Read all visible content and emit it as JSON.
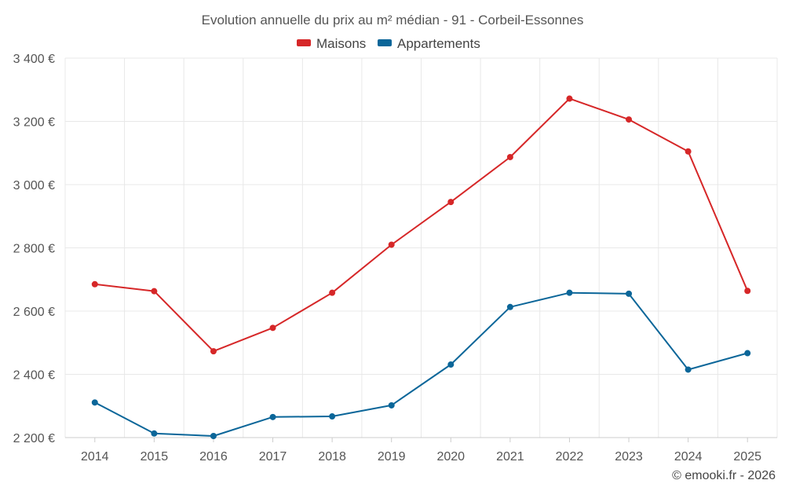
{
  "chart_data": {
    "type": "line",
    "title": "Evolution annuelle du prix au m² médian - 91 - Corbeil-Essonnes",
    "x": [
      "2014",
      "2015",
      "2016",
      "2017",
      "2018",
      "2019",
      "2020",
      "2021",
      "2022",
      "2023",
      "2024",
      "2025"
    ],
    "ylim": [
      2200,
      3400
    ],
    "yticks": [
      2200,
      2400,
      2600,
      2800,
      3000,
      3200,
      3400
    ],
    "ytick_labels": [
      "2 200 €",
      "2 400 €",
      "2 600 €",
      "2 800 €",
      "3 000 €",
      "3 200 €",
      "3 400 €"
    ],
    "legend_position": "top-center",
    "grid": true,
    "series": [
      {
        "name": "Maisons",
        "color": "#d62728",
        "values": [
          2685,
          2663,
          2473,
          2547,
          2658,
          2810,
          2945,
          3087,
          3272,
          3206,
          3105,
          2664
        ]
      },
      {
        "name": "Appartements",
        "color": "#0b6699",
        "values": [
          2311,
          2213,
          2205,
          2265,
          2267,
          2302,
          2431,
          2613,
          2658,
          2655,
          2415,
          2467
        ]
      }
    ],
    "credit": "© emooki.fr - 2026"
  }
}
